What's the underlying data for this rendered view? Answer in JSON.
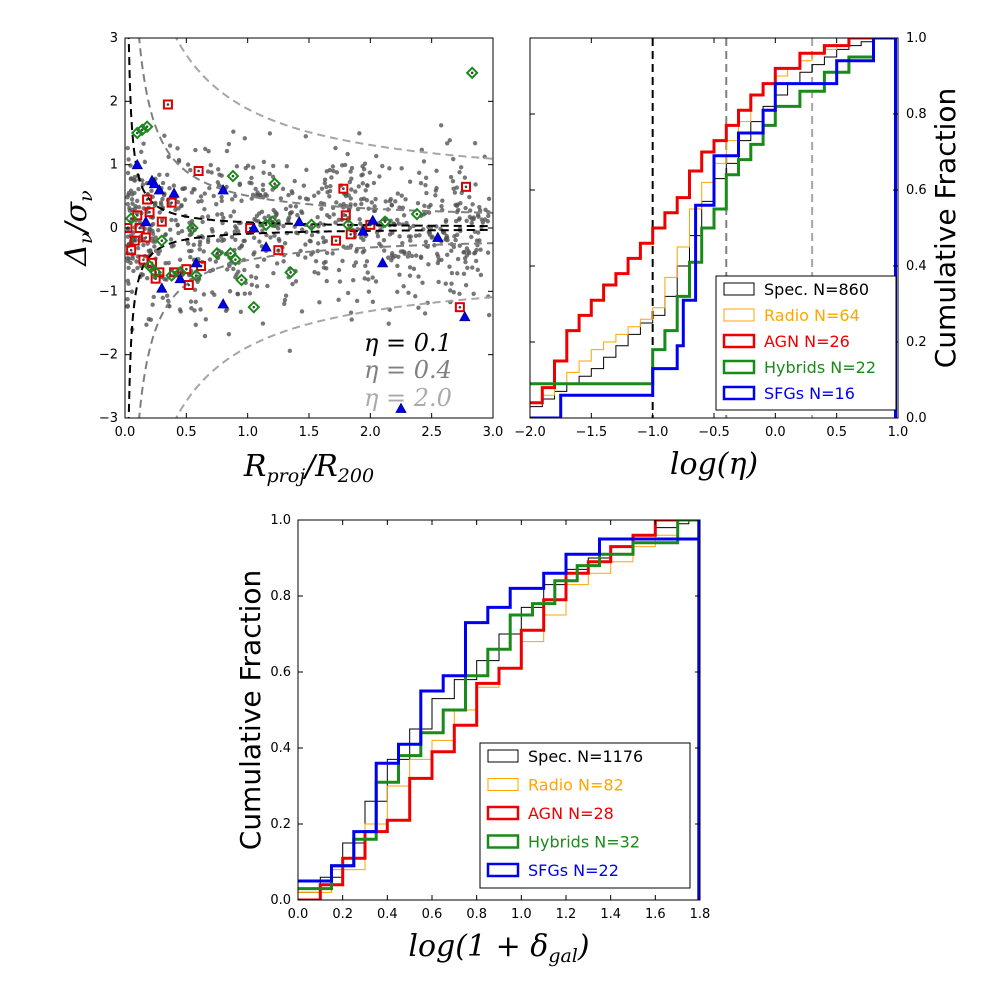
{
  "chart_data": [
    {
      "id": "scatter",
      "type": "scatter",
      "xlabel": "R_proj/R_200",
      "ylabel": "Δν/σν",
      "xlim": [
        0,
        3
      ],
      "ylim": [
        -3,
        3
      ],
      "xticks": [
        "0.0",
        "0.5",
        "1.0",
        "1.5",
        "2.0",
        "2.5",
        "3.0"
      ],
      "yticks": [
        "−3",
        "−2",
        "−1",
        "0",
        "1",
        "2",
        "3"
      ],
      "annotations": [
        {
          "text": "η = 0.1",
          "color": "#000000"
        },
        {
          "text": "η = 0.4",
          "color": "#808080"
        },
        {
          "text": "η = 2.0",
          "color": "#aaaaaa"
        }
      ],
      "eta_curves": [
        {
          "eta": 0.1,
          "color": "#000000"
        },
        {
          "eta": 0.4,
          "color": "#808080"
        },
        {
          "eta": 2.0,
          "color": "#a6a6a6"
        }
      ],
      "series": [
        {
          "name": "AGN",
          "marker": "square",
          "color": "#dd0000",
          "points": [
            [
              0.02,
              0.0
            ],
            [
              0.05,
              -0.35
            ],
            [
              0.08,
              -0.2
            ],
            [
              0.1,
              0.2
            ],
            [
              0.12,
              0.0
            ],
            [
              0.15,
              -0.5
            ],
            [
              0.17,
              -0.15
            ],
            [
              0.18,
              0.45
            ],
            [
              0.2,
              0.25
            ],
            [
              0.22,
              -0.55
            ],
            [
              0.25,
              -0.8
            ],
            [
              0.28,
              -0.7
            ],
            [
              0.3,
              0.1
            ],
            [
              0.35,
              1.95
            ],
            [
              0.38,
              0.4
            ],
            [
              0.4,
              -0.7
            ],
            [
              0.5,
              -0.65
            ],
            [
              0.52,
              -0.9
            ],
            [
              0.6,
              0.9
            ],
            [
              0.62,
              -0.6
            ],
            [
              1.02,
              0.0
            ],
            [
              1.25,
              -0.35
            ],
            [
              1.72,
              -0.2
            ],
            [
              1.78,
              0.62
            ],
            [
              1.8,
              0.2
            ],
            [
              1.84,
              -0.1
            ],
            [
              2.0,
              0.05
            ],
            [
              2.73,
              -1.25
            ],
            [
              2.78,
              0.65
            ]
          ]
        },
        {
          "name": "Hybrids",
          "marker": "diamond",
          "color": "#1a8a1a",
          "points": [
            [
              0.05,
              0.15
            ],
            [
              0.1,
              1.5
            ],
            [
              0.14,
              1.55
            ],
            [
              0.18,
              1.6
            ],
            [
              0.2,
              -0.6
            ],
            [
              0.25,
              -0.7
            ],
            [
              0.3,
              -0.2
            ],
            [
              0.38,
              -0.75
            ],
            [
              0.45,
              -0.7
            ],
            [
              0.55,
              0.0
            ],
            [
              0.58,
              -0.75
            ],
            [
              0.75,
              -0.4
            ],
            [
              0.86,
              -0.4
            ],
            [
              0.9,
              -0.5
            ],
            [
              0.95,
              -0.82
            ],
            [
              1.05,
              -1.25
            ],
            [
              1.15,
              0.05
            ],
            [
              1.2,
              0.1
            ],
            [
              1.22,
              0.7
            ],
            [
              1.35,
              -0.7
            ],
            [
              1.52,
              0.05
            ],
            [
              1.82,
              0.05
            ],
            [
              2.12,
              0.1
            ],
            [
              2.38,
              0.22
            ],
            [
              2.83,
              2.45
            ],
            [
              0.88,
              0.82
            ]
          ]
        },
        {
          "name": "SFGs",
          "marker": "triangle",
          "color": "#0000ee",
          "points": [
            [
              0.1,
              1.0
            ],
            [
              0.17,
              0.1
            ],
            [
              0.22,
              0.75
            ],
            [
              0.24,
              0.7
            ],
            [
              0.28,
              0.6
            ],
            [
              0.3,
              -0.95
            ],
            [
              0.4,
              0.55
            ],
            [
              0.45,
              -0.8
            ],
            [
              0.58,
              -0.55
            ],
            [
              0.8,
              0.6
            ],
            [
              0.8,
              -1.2
            ],
            [
              1.15,
              -0.3
            ],
            [
              1.42,
              0.1
            ],
            [
              2.02,
              0.12
            ],
            [
              2.25,
              -2.85
            ],
            [
              2.55,
              -0.15
            ],
            [
              2.77,
              -1.4
            ],
            [
              1.94,
              -0.05
            ],
            [
              1.05,
              0.0
            ],
            [
              2.1,
              -0.55
            ]
          ]
        }
      ]
    },
    {
      "id": "cdf_eta",
      "type": "line",
      "xlabel": "log(η)",
      "ylabel": "Cumulative Fraction",
      "xlim": [
        -2.0,
        1.0
      ],
      "ylim": [
        0,
        1
      ],
      "xticks": [
        "−2.0",
        "−1.5",
        "−1.0",
        "−0.5",
        "0.0",
        "0.5",
        "1.0"
      ],
      "yticks": [
        "0.0",
        "0.2",
        "0.4",
        "0.6",
        "0.8",
        "1.0"
      ],
      "vlines": [
        {
          "x": -1.0,
          "color": "#000000"
        },
        {
          "x": -0.4,
          "color": "#808080"
        },
        {
          "x": 0.3,
          "color": "#a6a6a6"
        }
      ],
      "series": [
        {
          "name": "Spec. N=860",
          "color": "#000000",
          "width": 1,
          "x": [
            -2.0,
            -1.9,
            -1.8,
            -1.7,
            -1.6,
            -1.5,
            -1.4,
            -1.3,
            -1.2,
            -1.1,
            -1.0,
            -0.9,
            -0.8,
            -0.7,
            -0.6,
            -0.5,
            -0.4,
            -0.3,
            -0.2,
            -0.1,
            0.0,
            0.1,
            0.2,
            0.3,
            0.4,
            0.5,
            0.6,
            0.7,
            0.8
          ],
          "values": [
            0.03,
            0.05,
            0.07,
            0.09,
            0.11,
            0.13,
            0.16,
            0.19,
            0.22,
            0.25,
            0.27,
            0.32,
            0.4,
            0.48,
            0.57,
            0.63,
            0.67,
            0.73,
            0.78,
            0.82,
            0.85,
            0.88,
            0.91,
            0.93,
            0.95,
            0.97,
            0.98,
            0.99,
            1.0
          ]
        },
        {
          "name": "Radio N=64",
          "color": "#ffa500",
          "width": 1,
          "x": [
            -2.0,
            -1.9,
            -1.8,
            -1.7,
            -1.6,
            -1.5,
            -1.4,
            -1.3,
            -1.2,
            -1.1,
            -1.0,
            -0.9,
            -0.8,
            -0.7,
            -0.6,
            -0.5,
            -0.4,
            -0.3,
            -0.2,
            -0.1,
            0.0,
            0.1,
            0.2,
            0.3,
            0.4,
            0.5,
            0.6
          ],
          "values": [
            0.04,
            0.06,
            0.09,
            0.12,
            0.15,
            0.18,
            0.2,
            0.22,
            0.24,
            0.26,
            0.29,
            0.37,
            0.45,
            0.55,
            0.62,
            0.67,
            0.73,
            0.78,
            0.85,
            0.88,
            0.9,
            0.92,
            0.94,
            0.96,
            0.97,
            0.98,
            1.0
          ]
        },
        {
          "name": "AGN N=26",
          "color": "#ee0000",
          "width": 3,
          "x": [
            -2.0,
            -1.9,
            -1.8,
            -1.7,
            -1.6,
            -1.5,
            -1.4,
            -1.3,
            -1.2,
            -1.1,
            -1.0,
            -0.9,
            -0.8,
            -0.7,
            -0.6,
            -0.5,
            -0.4,
            -0.3,
            -0.2,
            -0.1,
            0.0,
            0.2,
            0.4,
            0.6
          ],
          "values": [
            0.04,
            0.08,
            0.15,
            0.23,
            0.27,
            0.31,
            0.35,
            0.38,
            0.42,
            0.46,
            0.5,
            0.54,
            0.58,
            0.65,
            0.7,
            0.73,
            0.77,
            0.81,
            0.85,
            0.88,
            0.92,
            0.96,
            0.98,
            1.0
          ]
        },
        {
          "name": "Hybrids N=22",
          "color": "#1a8a1a",
          "width": 3,
          "x": [
            -2.0,
            -1.0,
            -0.9,
            -0.8,
            -0.7,
            -0.6,
            -0.5,
            -0.4,
            -0.3,
            -0.2,
            -0.1,
            0.0,
            0.2,
            0.4,
            0.6,
            0.8
          ],
          "values": [
            0.09,
            0.18,
            0.23,
            0.32,
            0.41,
            0.5,
            0.55,
            0.64,
            0.68,
            0.72,
            0.77,
            0.82,
            0.86,
            0.91,
            0.95,
            1.0
          ]
        },
        {
          "name": "SFGs N=16",
          "color": "#0000ee",
          "width": 3,
          "x": [
            -2.0,
            -1.75,
            -1.0,
            -0.8,
            -0.75,
            -0.65,
            -0.5,
            -0.3,
            -0.1,
            0.0,
            0.5,
            0.8
          ],
          "values": [
            0.0,
            0.06,
            0.13,
            0.19,
            0.31,
            0.56,
            0.69,
            0.75,
            0.81,
            0.88,
            0.94,
            1.0
          ]
        }
      ]
    },
    {
      "id": "cdf_delta",
      "type": "line",
      "xlabel": "log(1+δ_gal)",
      "ylabel": "Cumulative Fraction",
      "xlim": [
        0.0,
        1.8
      ],
      "ylim": [
        0,
        1
      ],
      "xticks": [
        "0.0",
        "0.2",
        "0.4",
        "0.6",
        "0.8",
        "1.0",
        "1.2",
        "1.4",
        "1.6",
        "1.8"
      ],
      "yticks": [
        "0.0",
        "0.2",
        "0.4",
        "0.6",
        "0.8",
        "1.0"
      ],
      "series": [
        {
          "name": "Spec. N=1176",
          "color": "#000000",
          "width": 1,
          "x": [
            0.0,
            0.1,
            0.2,
            0.3,
            0.4,
            0.5,
            0.6,
            0.7,
            0.8,
            0.9,
            1.0,
            1.1,
            1.2,
            1.3,
            1.4,
            1.5,
            1.6,
            1.7,
            1.75
          ],
          "values": [
            0.02,
            0.06,
            0.15,
            0.26,
            0.37,
            0.45,
            0.53,
            0.58,
            0.63,
            0.7,
            0.77,
            0.83,
            0.87,
            0.9,
            0.93,
            0.96,
            0.98,
            0.99,
            1.0
          ]
        },
        {
          "name": "Radio N=82",
          "color": "#ffa500",
          "width": 1,
          "x": [
            0.0,
            0.15,
            0.3,
            0.4,
            0.5,
            0.6,
            0.7,
            0.8,
            0.9,
            1.0,
            1.1,
            1.2,
            1.3,
            1.4,
            1.5,
            1.6,
            1.7
          ],
          "values": [
            0.02,
            0.08,
            0.2,
            0.3,
            0.37,
            0.42,
            0.5,
            0.56,
            0.61,
            0.68,
            0.75,
            0.83,
            0.86,
            0.89,
            0.93,
            0.96,
            1.0
          ]
        },
        {
          "name": "AGN N=28",
          "color": "#ee0000",
          "width": 3,
          "x": [
            0.0,
            0.1,
            0.2,
            0.3,
            0.4,
            0.5,
            0.6,
            0.7,
            0.8,
            0.9,
            1.0,
            1.1,
            1.2,
            1.3,
            1.4,
            1.5,
            1.6
          ],
          "values": [
            0.0,
            0.04,
            0.11,
            0.18,
            0.21,
            0.32,
            0.39,
            0.46,
            0.57,
            0.61,
            0.71,
            0.79,
            0.86,
            0.89,
            0.93,
            0.96,
            1.0
          ]
        },
        {
          "name": "Hybrids N=32",
          "color": "#1a8a1a",
          "width": 3,
          "x": [
            0.0,
            0.15,
            0.25,
            0.35,
            0.45,
            0.55,
            0.65,
            0.75,
            0.85,
            0.95,
            1.05,
            1.15,
            1.25,
            1.35,
            1.5,
            1.7
          ],
          "values": [
            0.03,
            0.09,
            0.16,
            0.31,
            0.38,
            0.44,
            0.5,
            0.59,
            0.66,
            0.75,
            0.78,
            0.84,
            0.88,
            0.91,
            0.94,
            1.0
          ]
        },
        {
          "name": "SFGs N=22",
          "color": "#0000ee",
          "width": 3,
          "x": [
            0.0,
            0.15,
            0.25,
            0.35,
            0.45,
            0.55,
            0.65,
            0.75,
            0.85,
            0.95,
            1.1,
            1.2,
            1.35,
            1.5,
            1.65,
            1.8
          ],
          "values": [
            0.05,
            0.09,
            0.18,
            0.36,
            0.41,
            0.55,
            0.59,
            0.73,
            0.77,
            0.82,
            0.86,
            0.91,
            0.95,
            0.95,
            0.95,
            1.0
          ]
        }
      ]
    }
  ]
}
